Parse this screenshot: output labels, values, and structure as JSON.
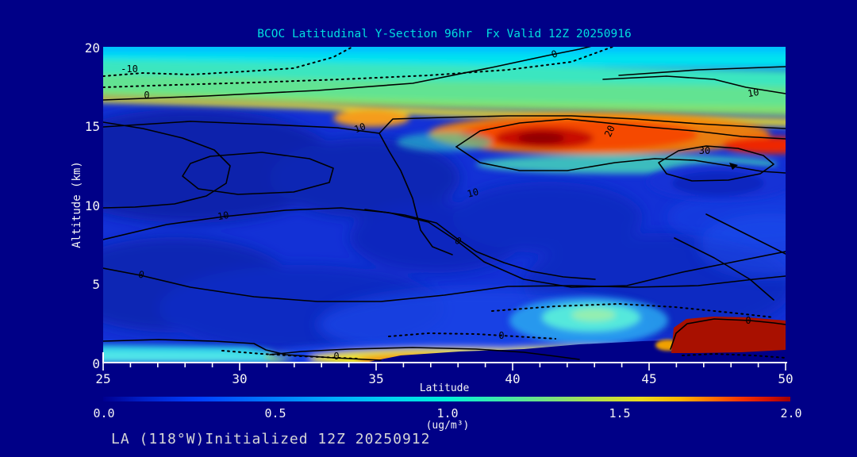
{
  "title": "BCOC Latitudinal Y-Section 96hr  Fx Valid 12Z 20250916",
  "footer": "LA (118°W)Initialized 12Z 20250912",
  "colors": {
    "background": "#000087",
    "title_text": "#00DFDF",
    "axis_text": "#F5F5F5",
    "footer_text": "#D6D6D6",
    "contour_lines": "#000000",
    "field_max": "#A00000",
    "field_min": "#000090"
  },
  "y_axis": {
    "label": "Altitude (km)",
    "ticks": [
      "20",
      "15",
      "10",
      "5",
      "0"
    ]
  },
  "x_axis": {
    "label": "Latitude",
    "ticks": [
      "25",
      "30",
      "35",
      "40",
      "45",
      "50"
    ]
  },
  "colorbar": {
    "ticks": [
      "0.0",
      "0.5",
      "1.0",
      "1.5",
      "2.0"
    ],
    "unit": "(ug/m³)",
    "gradient_hex": [
      "#000090",
      "#0040FF",
      "#00AAFF",
      "#00F0D8",
      "#80E078",
      "#E8DC20",
      "#FFB400",
      "#FF6C00",
      "#F53200",
      "#A00000"
    ]
  },
  "contour_labels": [
    {
      "text": "-10"
    },
    {
      "text": "0"
    },
    {
      "text": "10"
    },
    {
      "text": "0"
    },
    {
      "text": "10"
    },
    {
      "text": "20"
    },
    {
      "text": "30"
    },
    {
      "text": "10"
    },
    {
      "text": "0"
    },
    {
      "text": "0"
    },
    {
      "text": "0"
    },
    {
      "text": "0"
    },
    {
      "text": "0"
    },
    {
      "text": "10"
    }
  ],
  "chart_data": {
    "type": "heatmap",
    "title": "BCOC Latitudinal Y-Section 96hr  Fx Valid 12Z 20250916",
    "xlabel": "Latitude",
    "ylabel": "Altitude (km)",
    "xlim": [
      25,
      50
    ],
    "ylim": [
      0,
      20
    ],
    "x_ticks": [
      25,
      30,
      35,
      40,
      45,
      50
    ],
    "y_ticks": [
      0,
      5,
      10,
      15,
      20
    ],
    "fill_variable": "BCOC concentration",
    "fill_units": "ug/m3",
    "fill_range": [
      0.0,
      2.0
    ],
    "colorbar_ticks": [
      0.0,
      0.5,
      1.0,
      1.5,
      2.0
    ],
    "overlay_contour_levels": [
      -10,
      0,
      10,
      20,
      30
    ],
    "overlay_negative_contours_dotted": true,
    "legend_position": "bottom",
    "grid": false,
    "features": [
      {
        "name": "upper-level band",
        "lat": [
          25,
          50
        ],
        "alt_km": [
          15.5,
          20
        ],
        "value_ugm3": [
          0.4,
          1.0
        ],
        "appearance": "cyan-green layer across top"
      },
      {
        "name": "yellow layer",
        "lat": [
          25,
          50
        ],
        "alt_km": [
          14.5,
          15.5
        ],
        "value_ugm3": [
          1.2,
          1.5
        ],
        "appearance": "thin yellow band near 15 km"
      },
      {
        "name": "elevated plume maximum",
        "lat": [
          39,
          45
        ],
        "alt_km": [
          12.5,
          15
        ],
        "value_ugm3": [
          1.8,
          2.0
        ],
        "appearance": "dark red core near lat 41-42, 14 km"
      },
      {
        "name": "secondary elevated maximum",
        "lat": [
          34,
          36
        ],
        "alt_km": [
          14,
          15
        ],
        "value_ugm3": [
          1.5,
          1.7
        ],
        "appearance": "orange patch"
      },
      {
        "name": "right-edge elevated maximum",
        "lat": [
          48.5,
          50
        ],
        "alt_km": [
          13,
          14
        ],
        "value_ugm3": [
          1.9,
          2.0
        ],
        "appearance": "red streak at right edge"
      },
      {
        "name": "mid-troposphere minimum",
        "lat": [
          25,
          50
        ],
        "alt_km": [
          2,
          12
        ],
        "value_ugm3": [
          0.1,
          0.35
        ],
        "appearance": "broad dark/royal blue region"
      },
      {
        "name": "low-level pocket",
        "lat": [
          40,
          44.5
        ],
        "alt_km": [
          1,
          3.5
        ],
        "value_ugm3": [
          0.5,
          0.9
        ],
        "appearance": "bright cyan blob"
      },
      {
        "name": "surface plume",
        "lat": [
          31.5,
          44
        ],
        "alt_km": [
          0,
          1.2
        ],
        "value_ugm3": [
          0.9,
          1.4
        ],
        "appearance": "yellow-orange band along surface"
      },
      {
        "name": "surface layer left",
        "lat": [
          25,
          31
        ],
        "alt_km": [
          0,
          0.6
        ],
        "value_ugm3": [
          0.5,
          0.7
        ],
        "appearance": "cyan strip"
      },
      {
        "name": "surface maximum right",
        "lat": [
          46,
          50
        ],
        "alt_km": [
          0.5,
          2.8
        ],
        "value_ugm3": [
          2.0,
          2.0
        ],
        "appearance": "saturated dark red blob (off-scale)"
      },
      {
        "name": "terrain mask",
        "lat": [
          35,
          50
        ],
        "alt_km": [
          0,
          1.6
        ],
        "appearance": "background-navy wedge rising toward lat 50"
      }
    ]
  }
}
